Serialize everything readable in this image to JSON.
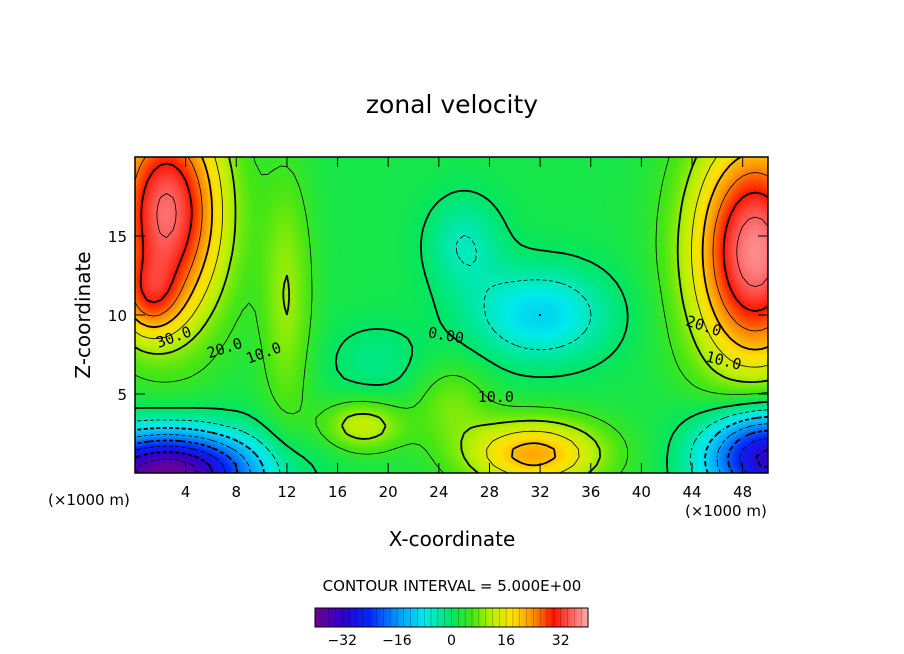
{
  "chart_data": {
    "type": "contour",
    "title": "zonal velocity",
    "xlabel": "X-coordinate",
    "ylabel": "Z-coordinate",
    "x_unit": "(×1000 m)",
    "y_unit": "(×1000 m)",
    "xlim": [
      0,
      50
    ],
    "ylim": [
      0,
      20
    ],
    "x_ticks": [
      "4",
      "8",
      "12",
      "16",
      "20",
      "24",
      "28",
      "32",
      "36",
      "40",
      "44",
      "48"
    ],
    "x_tick_values": [
      4,
      8,
      12,
      16,
      20,
      24,
      28,
      32,
      36,
      40,
      44,
      48
    ],
    "y_ticks": [
      "5",
      "10",
      "15"
    ],
    "y_tick_values": [
      5,
      10,
      15
    ],
    "contour_interval_label": "CONTOUR INTERVAL = 5.000E+00",
    "contour_interval": 5,
    "contour_labels": [
      {
        "text": "30.0",
        "x": 3.2,
        "y": 8.3,
        "rot": -20
      },
      {
        "text": "20.0",
        "x": 7.2,
        "y": 7.6,
        "rot": -18
      },
      {
        "text": "10.0",
        "x": 10.3,
        "y": 7.3,
        "rot": -20
      },
      {
        "text": "0.00",
        "x": 24.5,
        "y": 8.4,
        "rot": 10
      },
      {
        "text": "10.0",
        "x": 28.5,
        "y": 4.5,
        "rot": 0
      },
      {
        "text": "20.0",
        "x": 44.8,
        "y": 9.0,
        "rot": 18
      },
      {
        "text": "10.0",
        "x": 46.4,
        "y": 6.8,
        "rot": 14
      }
    ],
    "colorbar": {
      "range": [
        -40,
        40
      ],
      "ticks": [
        "-32",
        "-16",
        "0",
        "16",
        "32"
      ],
      "tick_values": [
        -32,
        -16,
        0,
        16,
        32
      ]
    },
    "features": [
      {
        "x": 3.5,
        "z": 18,
        "value": 35,
        "note": "upper-left jet"
      },
      {
        "x": 2,
        "z": 11,
        "value": 40,
        "note": "upper-left max"
      },
      {
        "x": 47,
        "z": 13,
        "value": 38,
        "note": "upper-right jet"
      },
      {
        "x": 32,
        "z": 10,
        "value": -10,
        "note": "mid-level minimum"
      },
      {
        "x": 26,
        "z": 14,
        "value": -7,
        "note": "secondary minimum"
      },
      {
        "x": 2.5,
        "z": 0.5,
        "value": -40,
        "note": "lower-left minimum"
      },
      {
        "x": 49.5,
        "z": 1.5,
        "value": -33,
        "note": "lower-right minimum"
      },
      {
        "x": 31.5,
        "z": 1.5,
        "value": 26,
        "note": "near-surface maximum"
      },
      {
        "x": 18,
        "z": 3,
        "value": 14,
        "note": "low-level maximum"
      }
    ]
  }
}
